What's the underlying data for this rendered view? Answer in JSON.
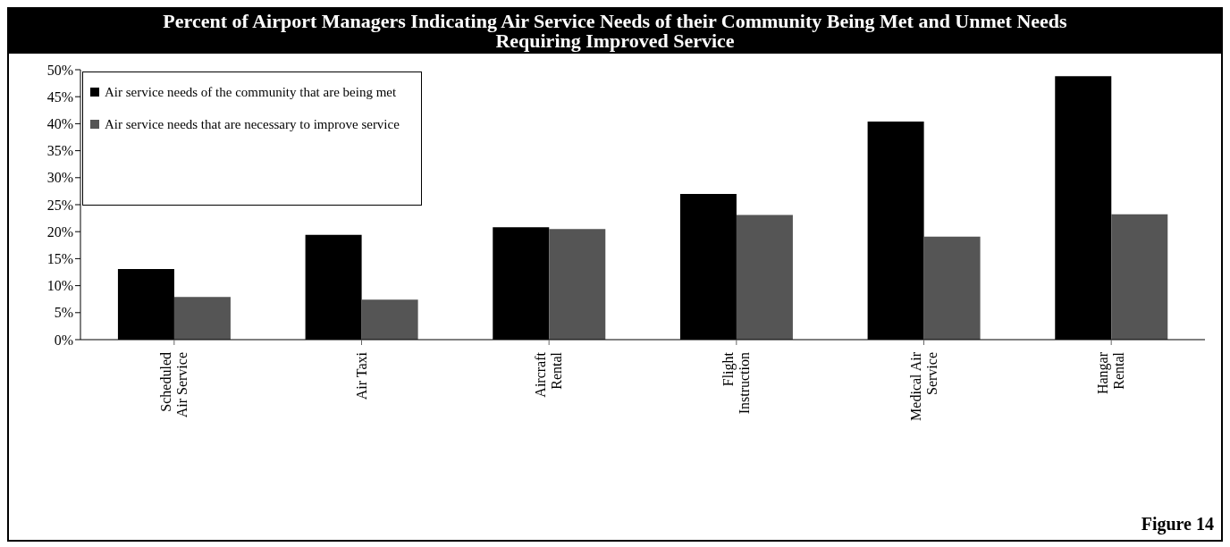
{
  "chart_data": {
    "type": "bar",
    "title": "Percent of Airport Managers Indicating Air Service Needs of their Community Being Met and Unmet Needs Requiring Improved Service",
    "categories": [
      "Scheduled Air Service",
      "Air Taxi",
      "Aircraft Rental",
      "Flight Instruction",
      "Medical Air Service",
      "Hangar Rental"
    ],
    "series": [
      {
        "name": "Air service needs of the community that are being met",
        "color": "#000000",
        "values": [
          13.1,
          19.4,
          20.8,
          27.0,
          40.4,
          48.8
        ]
      },
      {
        "name": "Air service needs that are necessary to improve service",
        "color": "#555555",
        "values": [
          7.9,
          7.4,
          20.5,
          23.1,
          19.1,
          23.2
        ]
      }
    ],
    "ylim": [
      0,
      50
    ],
    "yticks": [
      {
        "value": 0,
        "label": "0%"
      },
      {
        "value": 5,
        "label": "5%"
      },
      {
        "value": 10,
        "label": "10%"
      },
      {
        "value": 15,
        "label": "15%"
      },
      {
        "value": 20,
        "label": "20%"
      },
      {
        "value": 25,
        "label": "25%"
      },
      {
        "value": 30,
        "label": "30%"
      },
      {
        "value": 35,
        "label": "35%"
      },
      {
        "value": 40,
        "label": "40%"
      },
      {
        "value": 45,
        "label": "45%"
      },
      {
        "value": 50,
        "label": "50%"
      }
    ],
    "legend": "top left",
    "annotations": [
      "Figure 14"
    ]
  }
}
